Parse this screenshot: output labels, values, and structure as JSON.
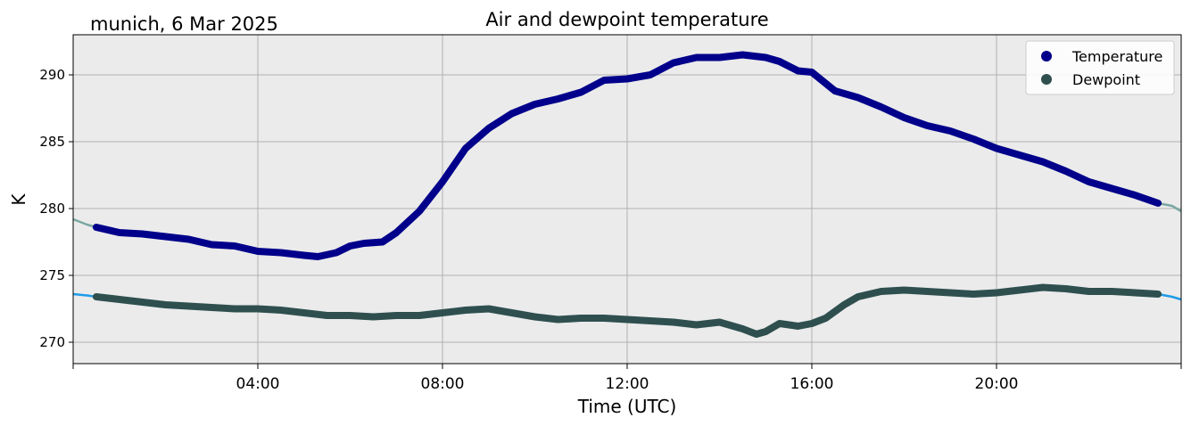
{
  "chart_data": {
    "type": "line",
    "title": "Air and dewpoint temperature",
    "subtitle": "munich, 6 Mar 2025",
    "xlabel": "Time (UTC)",
    "ylabel": "K",
    "xlim": [
      0,
      24
    ],
    "ylim": [
      268.4,
      293
    ],
    "x_ticks": [
      {
        "value": 4,
        "label": "04:00"
      },
      {
        "value": 8,
        "label": "08:00"
      },
      {
        "value": 12,
        "label": "12:00"
      },
      {
        "value": 16,
        "label": "16:00"
      },
      {
        "value": 20,
        "label": "20:00"
      }
    ],
    "y_ticks": [
      {
        "value": 270,
        "label": "270"
      },
      {
        "value": 275,
        "label": "275"
      },
      {
        "value": 280,
        "label": "280"
      },
      {
        "value": 285,
        "label": "285"
      },
      {
        "value": 290,
        "label": "290"
      }
    ],
    "grid": true,
    "legend_position": "top-right",
    "plot_background": "#ebebeb",
    "series": [
      {
        "name": "Temperature",
        "color": "#00008b",
        "raw_color": "#7aa7a2",
        "x": [
          0.0,
          0.3,
          0.5,
          1.0,
          1.5,
          2.0,
          2.5,
          3.0,
          3.5,
          4.0,
          4.5,
          5.0,
          5.3,
          5.7,
          6.0,
          6.3,
          6.7,
          7.0,
          7.5,
          8.0,
          8.5,
          9.0,
          9.5,
          10.0,
          10.5,
          11.0,
          11.5,
          12.0,
          12.5,
          13.0,
          13.5,
          14.0,
          14.5,
          15.0,
          15.3,
          15.7,
          16.0,
          16.5,
          17.0,
          17.5,
          18.0,
          18.5,
          19.0,
          19.5,
          20.0,
          20.5,
          21.0,
          21.5,
          22.0,
          22.5,
          23.0,
          23.5,
          23.8,
          24.0
        ],
        "values": [
          279.2,
          278.8,
          278.6,
          278.2,
          278.1,
          277.9,
          277.7,
          277.3,
          277.2,
          276.8,
          276.7,
          276.5,
          276.4,
          276.7,
          277.2,
          277.4,
          277.5,
          278.2,
          279.8,
          282.0,
          284.5,
          286.0,
          287.1,
          287.8,
          288.2,
          288.7,
          289.6,
          289.7,
          290.0,
          290.9,
          291.3,
          291.3,
          291.5,
          291.3,
          291.0,
          290.3,
          290.2,
          288.8,
          288.3,
          287.6,
          286.8,
          286.2,
          285.8,
          285.2,
          284.5,
          284.0,
          283.5,
          282.8,
          282.0,
          281.5,
          281.0,
          280.4,
          280.2,
          279.8
        ]
      },
      {
        "name": "Dewpoint",
        "color": "#2f4f4f",
        "raw_color": "#1e9be8",
        "x": [
          0.0,
          0.3,
          0.5,
          1.0,
          1.5,
          2.0,
          2.5,
          3.0,
          3.5,
          4.0,
          4.5,
          5.0,
          5.5,
          6.0,
          6.5,
          7.0,
          7.5,
          8.0,
          8.5,
          9.0,
          9.5,
          10.0,
          10.5,
          11.0,
          11.5,
          12.0,
          12.5,
          13.0,
          13.5,
          14.0,
          14.5,
          14.8,
          15.0,
          15.3,
          15.7,
          16.0,
          16.3,
          16.7,
          17.0,
          17.5,
          18.0,
          18.5,
          19.0,
          19.5,
          20.0,
          20.5,
          21.0,
          21.5,
          22.0,
          22.5,
          23.0,
          23.5,
          23.8,
          24.0
        ],
        "values": [
          273.6,
          273.5,
          273.4,
          273.2,
          273.0,
          272.8,
          272.7,
          272.6,
          272.5,
          272.5,
          272.4,
          272.2,
          272.0,
          272.0,
          271.9,
          272.0,
          272.0,
          272.2,
          272.4,
          272.5,
          272.2,
          271.9,
          271.7,
          271.8,
          271.8,
          271.7,
          271.6,
          271.5,
          271.3,
          271.5,
          271.0,
          270.6,
          270.8,
          271.4,
          271.2,
          271.4,
          271.8,
          272.8,
          273.4,
          273.8,
          273.9,
          273.8,
          273.7,
          273.6,
          273.7,
          273.9,
          274.1,
          274.0,
          273.8,
          273.8,
          273.7,
          273.6,
          273.4,
          273.2
        ]
      }
    ]
  }
}
